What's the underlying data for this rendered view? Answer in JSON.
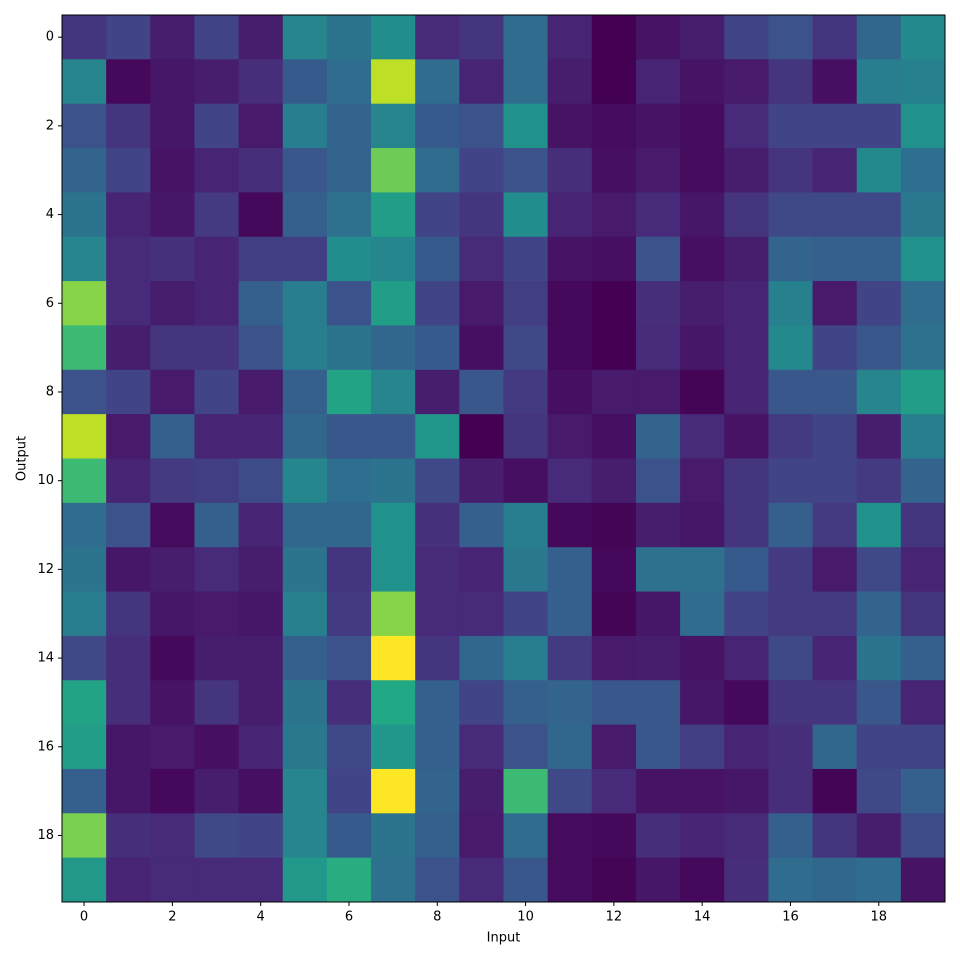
{
  "chart_data": {
    "type": "heatmap",
    "colormap": "viridis",
    "clim": [
      0,
      1
    ],
    "xlabel": "Input",
    "ylabel": "Output",
    "xlim": [
      -0.5,
      19.5
    ],
    "ylim": [
      19.5,
      -0.5
    ],
    "xticks": [
      0,
      2,
      4,
      6,
      8,
      10,
      12,
      14,
      16,
      18
    ],
    "yticks": [
      0,
      2,
      4,
      6,
      8,
      10,
      12,
      14,
      16,
      18
    ],
    "values": [
      [
        0.15,
        0.2,
        0.08,
        0.2,
        0.08,
        0.45,
        0.38,
        0.48,
        0.12,
        0.15,
        0.35,
        0.1,
        0.0,
        0.05,
        0.08,
        0.2,
        0.25,
        0.15,
        0.33,
        0.47
      ],
      [
        0.45,
        0.02,
        0.06,
        0.08,
        0.13,
        0.28,
        0.35,
        0.9,
        0.35,
        0.1,
        0.35,
        0.08,
        0.0,
        0.1,
        0.05,
        0.07,
        0.15,
        0.04,
        0.42,
        0.43
      ],
      [
        0.25,
        0.15,
        0.06,
        0.2,
        0.07,
        0.42,
        0.32,
        0.45,
        0.28,
        0.25,
        0.5,
        0.05,
        0.03,
        0.05,
        0.03,
        0.12,
        0.2,
        0.2,
        0.2,
        0.5
      ],
      [
        0.32,
        0.2,
        0.05,
        0.1,
        0.13,
        0.27,
        0.32,
        0.78,
        0.35,
        0.2,
        0.25,
        0.13,
        0.04,
        0.07,
        0.03,
        0.08,
        0.15,
        0.1,
        0.47,
        0.36
      ],
      [
        0.38,
        0.1,
        0.06,
        0.17,
        0.02,
        0.3,
        0.37,
        0.55,
        0.2,
        0.15,
        0.48,
        0.1,
        0.07,
        0.12,
        0.06,
        0.15,
        0.22,
        0.22,
        0.22,
        0.4
      ],
      [
        0.45,
        0.12,
        0.14,
        0.1,
        0.18,
        0.18,
        0.48,
        0.46,
        0.28,
        0.12,
        0.2,
        0.05,
        0.04,
        0.25,
        0.04,
        0.08,
        0.32,
        0.3,
        0.3,
        0.5
      ],
      [
        0.82,
        0.12,
        0.08,
        0.1,
        0.3,
        0.42,
        0.25,
        0.55,
        0.2,
        0.07,
        0.18,
        0.02,
        0.0,
        0.13,
        0.08,
        0.1,
        0.43,
        0.07,
        0.2,
        0.35
      ],
      [
        0.68,
        0.08,
        0.15,
        0.15,
        0.25,
        0.42,
        0.38,
        0.33,
        0.28,
        0.04,
        0.22,
        0.02,
        0.0,
        0.12,
        0.06,
        0.1,
        0.47,
        0.2,
        0.27,
        0.37
      ],
      [
        0.25,
        0.2,
        0.07,
        0.2,
        0.07,
        0.3,
        0.58,
        0.45,
        0.08,
        0.27,
        0.17,
        0.04,
        0.07,
        0.07,
        0.01,
        0.1,
        0.27,
        0.27,
        0.45,
        0.55
      ],
      [
        0.9,
        0.07,
        0.3,
        0.1,
        0.1,
        0.33,
        0.27,
        0.27,
        0.52,
        0.0,
        0.15,
        0.07,
        0.04,
        0.32,
        0.12,
        0.05,
        0.17,
        0.2,
        0.08,
        0.42
      ],
      [
        0.68,
        0.1,
        0.17,
        0.18,
        0.23,
        0.46,
        0.36,
        0.38,
        0.22,
        0.08,
        0.04,
        0.12,
        0.08,
        0.25,
        0.07,
        0.15,
        0.2,
        0.2,
        0.17,
        0.32
      ],
      [
        0.35,
        0.25,
        0.03,
        0.3,
        0.1,
        0.33,
        0.33,
        0.5,
        0.14,
        0.3,
        0.42,
        0.02,
        0.01,
        0.08,
        0.06,
        0.15,
        0.3,
        0.17,
        0.5,
        0.15
      ],
      [
        0.38,
        0.06,
        0.08,
        0.12,
        0.08,
        0.38,
        0.15,
        0.5,
        0.12,
        0.1,
        0.4,
        0.3,
        0.02,
        0.37,
        0.37,
        0.28,
        0.17,
        0.07,
        0.22,
        0.1
      ],
      [
        0.42,
        0.15,
        0.06,
        0.07,
        0.06,
        0.43,
        0.17,
        0.82,
        0.12,
        0.12,
        0.2,
        0.3,
        0.01,
        0.06,
        0.35,
        0.2,
        0.17,
        0.17,
        0.32,
        0.15
      ],
      [
        0.22,
        0.13,
        0.02,
        0.08,
        0.08,
        0.3,
        0.25,
        1.0,
        0.15,
        0.33,
        0.42,
        0.17,
        0.07,
        0.08,
        0.05,
        0.1,
        0.22,
        0.1,
        0.38,
        0.3
      ],
      [
        0.58,
        0.13,
        0.05,
        0.15,
        0.08,
        0.38,
        0.13,
        0.6,
        0.3,
        0.2,
        0.3,
        0.32,
        0.27,
        0.27,
        0.06,
        0.02,
        0.15,
        0.15,
        0.27,
        0.1
      ],
      [
        0.55,
        0.06,
        0.07,
        0.04,
        0.1,
        0.4,
        0.22,
        0.52,
        0.3,
        0.12,
        0.25,
        0.33,
        0.07,
        0.27,
        0.18,
        0.1,
        0.13,
        0.33,
        0.2,
        0.2
      ],
      [
        0.3,
        0.06,
        0.02,
        0.08,
        0.04,
        0.45,
        0.2,
        1.0,
        0.32,
        0.08,
        0.68,
        0.22,
        0.12,
        0.05,
        0.05,
        0.06,
        0.13,
        0.01,
        0.22,
        0.3
      ],
      [
        0.8,
        0.13,
        0.12,
        0.22,
        0.2,
        0.45,
        0.28,
        0.38,
        0.3,
        0.07,
        0.35,
        0.03,
        0.02,
        0.13,
        0.1,
        0.12,
        0.3,
        0.15,
        0.08,
        0.23
      ],
      [
        0.53,
        0.1,
        0.12,
        0.12,
        0.12,
        0.53,
        0.62,
        0.37,
        0.25,
        0.12,
        0.27,
        0.03,
        0.01,
        0.06,
        0.02,
        0.13,
        0.35,
        0.33,
        0.35,
        0.05
      ]
    ]
  }
}
